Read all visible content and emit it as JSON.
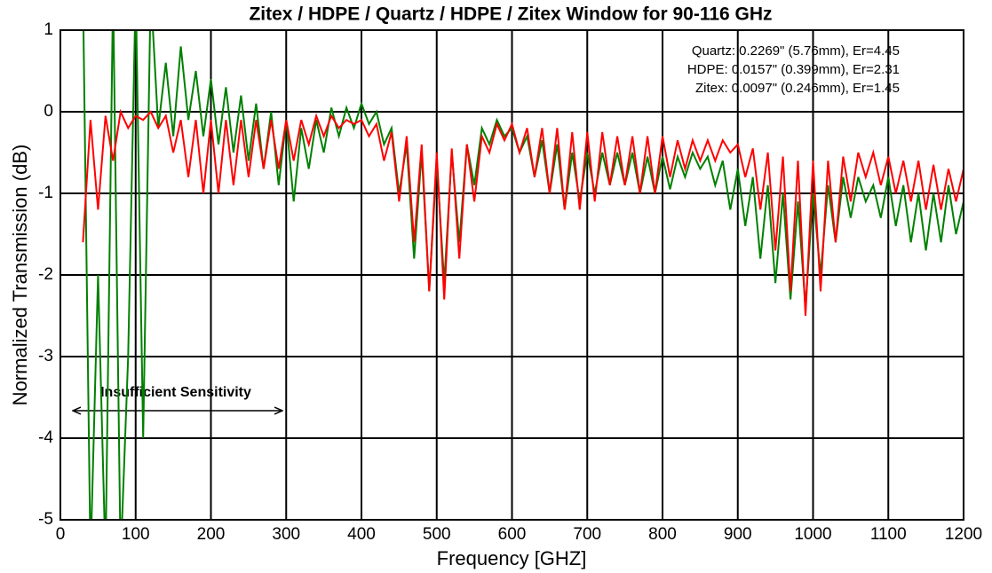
{
  "chart_data": {
    "type": "line",
    "title": "Zitex / HDPE / Quartz / HDPE / Zitex Window for 90-116 GHz",
    "x_label": "Frequency [GHZ]",
    "y_label": "Normalized Transmission (dB)",
    "annotations": [
      "Quartz:  0.2269\" (5.76mm), Er=4.45",
      "HDPE:  0.0157\" (0.399mm), Er=2.31",
      "Zitex:  0.0097\" (0.246mm), Er=1.45",
      "Insufficient Sensitivity"
    ],
    "xlim": [
      0,
      1200
    ],
    "xticks": [
      0,
      100,
      200,
      300,
      400,
      500,
      600,
      700,
      800,
      900,
      1000,
      1100,
      1200
    ],
    "ylim": [
      -5,
      1
    ],
    "yticks": [
      -5,
      -4,
      -3,
      -2,
      -1,
      0,
      1
    ],
    "grid": true,
    "x": [
      30,
      40,
      50,
      60,
      70,
      80,
      90,
      100,
      110,
      120,
      130,
      140,
      150,
      160,
      170,
      180,
      190,
      200,
      210,
      220,
      230,
      240,
      250,
      260,
      270,
      280,
      290,
      300,
      310,
      320,
      330,
      340,
      350,
      360,
      370,
      380,
      390,
      400,
      410,
      420,
      430,
      440,
      450,
      460,
      470,
      480,
      490,
      500,
      510,
      520,
      530,
      540,
      550,
      560,
      570,
      580,
      590,
      600,
      610,
      620,
      630,
      640,
      650,
      660,
      670,
      680,
      690,
      700,
      710,
      720,
      730,
      740,
      750,
      760,
      770,
      780,
      790,
      800,
      810,
      820,
      830,
      840,
      850,
      860,
      870,
      880,
      890,
      900,
      910,
      920,
      930,
      940,
      950,
      960,
      970,
      980,
      990,
      1000,
      1010,
      1020,
      1030,
      1040,
      1050,
      1060,
      1070,
      1080,
      1090,
      1100,
      1110,
      1120,
      1130,
      1140,
      1150,
      1160,
      1170,
      1180,
      1190,
      1200
    ],
    "series": [
      {
        "color": "#008000",
        "values": [
          1.5,
          -5.5,
          -2,
          -5.5,
          1.5,
          -5.5,
          -3,
          1.5,
          -4,
          1.5,
          -0.2,
          0.6,
          -0.3,
          0.8,
          -0.1,
          0.5,
          -0.3,
          0.4,
          -0.4,
          0.3,
          -0.5,
          0.2,
          -0.6,
          0.1,
          -0.7,
          0,
          -0.9,
          -0.1,
          -1.1,
          -0.2,
          -0.7,
          -0.1,
          -0.5,
          0.05,
          -0.3,
          0.05,
          -0.2,
          0.1,
          -0.15,
          0,
          -0.4,
          -0.2,
          -1.0,
          -0.4,
          -1.8,
          -0.5,
          -2.2,
          -0.6,
          -2.1,
          -0.5,
          -1.6,
          -0.4,
          -0.9,
          -0.2,
          -0.4,
          -0.1,
          -0.3,
          -0.2,
          -0.5,
          -0.3,
          -0.8,
          -0.35,
          -1.0,
          -0.4,
          -1.2,
          -0.5,
          -1.1,
          -0.5,
          -1.0,
          -0.5,
          -0.9,
          -0.5,
          -0.9,
          -0.5,
          -1.0,
          -0.55,
          -1.0,
          -0.55,
          -0.95,
          -0.55,
          -0.8,
          -0.5,
          -0.7,
          -0.55,
          -0.9,
          -0.6,
          -1.2,
          -0.7,
          -1.4,
          -0.8,
          -1.8,
          -0.9,
          -2.1,
          -1.0,
          -2.3,
          -1.1,
          -2.4,
          -1.0,
          -2.0,
          -0.9,
          -1.6,
          -0.8,
          -1.3,
          -0.8,
          -1.1,
          -0.9,
          -1.3,
          -0.8,
          -1.4,
          -0.9,
          -1.6,
          -1.0,
          -1.7,
          -1.0,
          -1.6,
          -0.9,
          -1.5,
          -1.1
        ]
      },
      {
        "color": "#ff0000",
        "values": [
          -1.6,
          -0.1,
          -1.2,
          -0.05,
          -0.6,
          0,
          -0.2,
          -0.05,
          -0.1,
          0,
          -0.2,
          -0.05,
          -0.5,
          -0.1,
          -0.8,
          -0.1,
          -1.0,
          -0.1,
          -1.0,
          -0.1,
          -0.9,
          -0.1,
          -0.8,
          -0.1,
          -0.7,
          -0.1,
          -0.7,
          -0.1,
          -0.6,
          -0.1,
          -0.4,
          -0.05,
          -0.3,
          -0.05,
          -0.2,
          -0.1,
          -0.15,
          -0.1,
          -0.3,
          -0.15,
          -0.6,
          -0.25,
          -1.1,
          -0.3,
          -1.6,
          -0.4,
          -2.2,
          -0.5,
          -2.3,
          -0.45,
          -1.8,
          -0.4,
          -1.1,
          -0.3,
          -0.5,
          -0.15,
          -0.35,
          -0.15,
          -0.5,
          -0.2,
          -0.8,
          -0.2,
          -1.0,
          -0.2,
          -1.2,
          -0.25,
          -1.2,
          -0.25,
          -1.1,
          -0.25,
          -0.9,
          -0.3,
          -0.9,
          -0.3,
          -1.0,
          -0.3,
          -1.0,
          -0.3,
          -0.8,
          -0.35,
          -0.7,
          -0.35,
          -0.6,
          -0.35,
          -0.6,
          -0.35,
          -0.5,
          -0.4,
          -0.8,
          -0.45,
          -1.2,
          -0.5,
          -1.7,
          -0.55,
          -2.2,
          -0.6,
          -2.5,
          -0.6,
          -2.2,
          -0.6,
          -1.6,
          -0.55,
          -1.1,
          -0.5,
          -0.8,
          -0.5,
          -0.9,
          -0.55,
          -1.0,
          -0.6,
          -1.1,
          -0.6,
          -1.2,
          -0.65,
          -1.2,
          -0.7,
          -1.1,
          -0.7
        ]
      }
    ]
  }
}
